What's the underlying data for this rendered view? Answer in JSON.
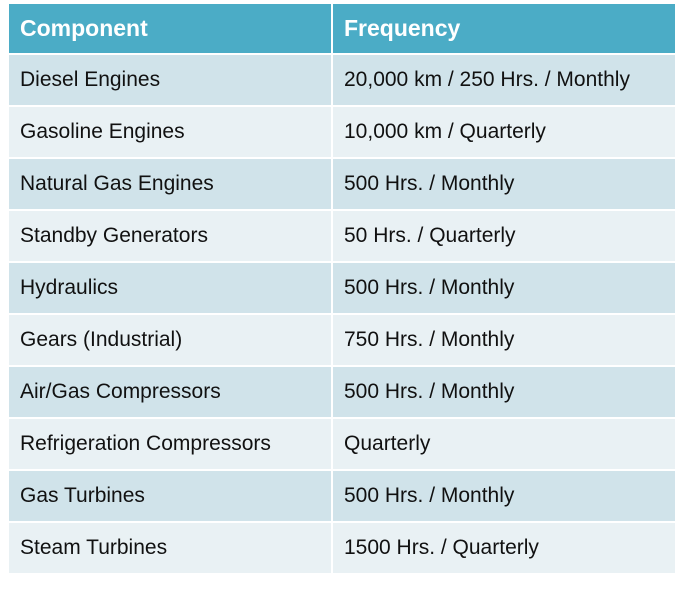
{
  "table": {
    "header": [
      "Component",
      "Frequency"
    ],
    "rows": [
      [
        "Diesel Engines",
        "20,000 km / 250 Hrs. / Monthly"
      ],
      [
        "Gasoline Engines",
        "10,000 km / Quarterly"
      ],
      [
        "Natural Gas Engines",
        "500 Hrs. / Monthly"
      ],
      [
        "Standby Generators",
        "50 Hrs. / Quarterly"
      ],
      [
        "Hydraulics",
        "500 Hrs. / Monthly"
      ],
      [
        "Gears (Industrial)",
        "750 Hrs. / Monthly"
      ],
      [
        "Air/Gas Compressors",
        "500 Hrs. / Monthly"
      ],
      [
        "Refrigeration Compressors",
        "Quarterly"
      ],
      [
        "Gas Turbines",
        "500 Hrs. / Monthly"
      ],
      [
        "Steam Turbines",
        "1500 Hrs. / Quarterly"
      ]
    ]
  }
}
